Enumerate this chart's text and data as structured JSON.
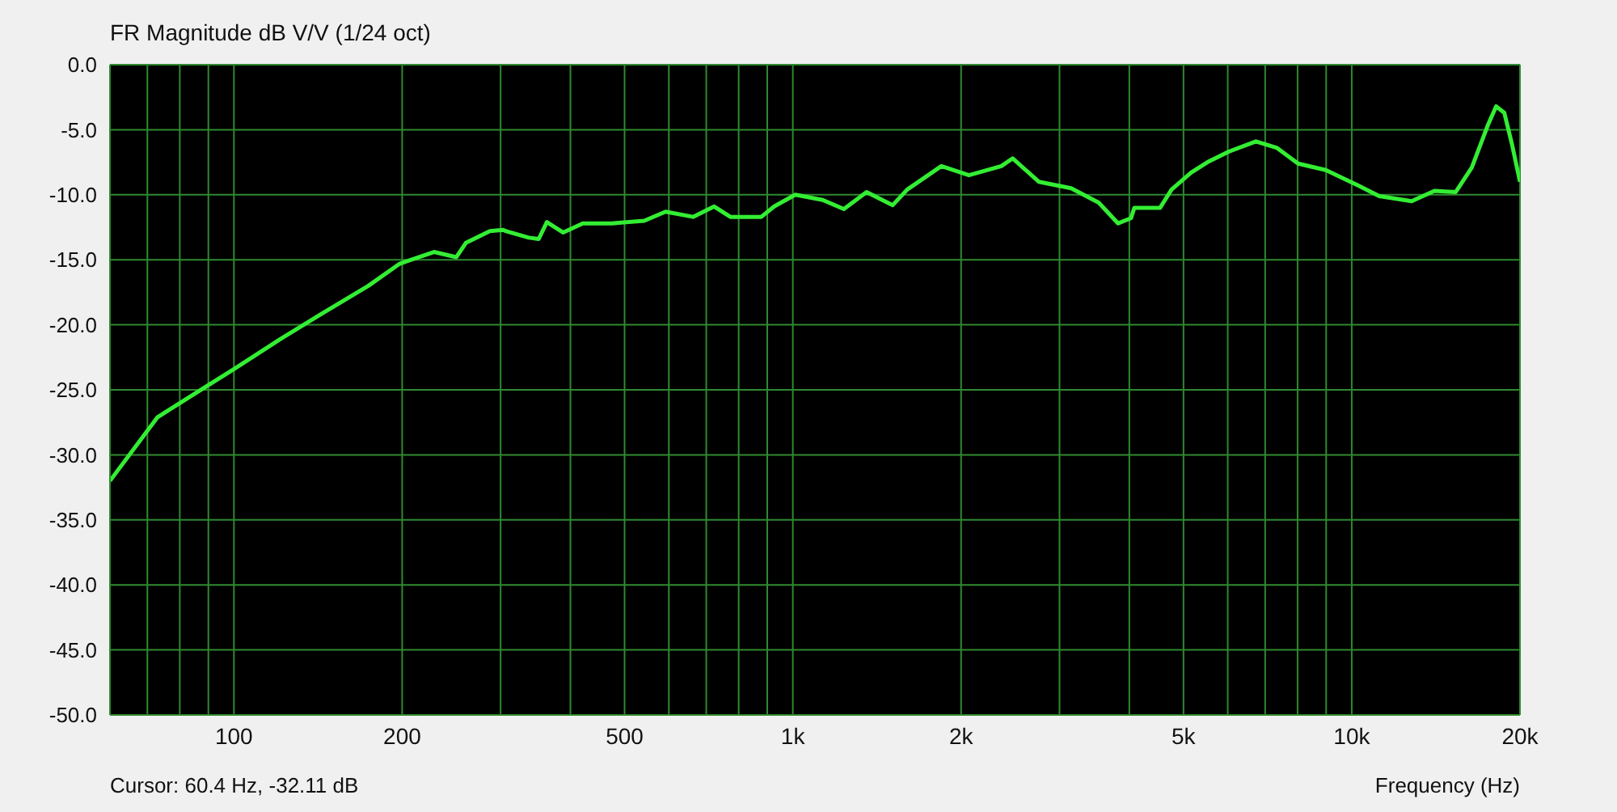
{
  "chart_data": {
    "type": "line",
    "title": "FR Magnitude dB V/V (1/24 oct)",
    "xlabel": "Frequency (Hz)",
    "annotations": [
      "Cursor: 60.4 Hz, -32.11 dB"
    ],
    "x": [
      60,
      73,
      100,
      121,
      143,
      174,
      198,
      228,
      250,
      260,
      287,
      303,
      307,
      337,
      351,
      363,
      388,
      421,
      475,
      542,
      592,
      663,
      723,
      773,
      878,
      926,
      1010,
      1131,
      1234,
      1355,
      1509,
      1602,
      1844,
      2066,
      2361,
      2474,
      2754,
      3147,
      3525,
      3819,
      4028,
      4083,
      4541,
      4760,
      5160,
      5518,
      6014,
      6739,
      7352,
      8017,
      8986,
      10280,
      11200,
      12800,
      14060,
      15340,
      16400,
      17540,
      18130,
      18750,
      19370,
      20000
    ],
    "series": [
      {
        "color": "#33ee33",
        "values": [
          -32.0,
          -27.1,
          -23.4,
          -21.1,
          -19.2,
          -17.0,
          -15.3,
          -14.4,
          -14.8,
          -13.7,
          -12.8,
          -12.7,
          -12.8,
          -13.3,
          -13.4,
          -12.1,
          -12.9,
          -12.2,
          -12.2,
          -12.0,
          -11.3,
          -11.7,
          -10.9,
          -11.7,
          -11.7,
          -10.9,
          -10.0,
          -10.4,
          -11.1,
          -9.8,
          -10.8,
          -9.6,
          -7.8,
          -8.5,
          -7.8,
          -7.2,
          -9.0,
          -9.5,
          -10.6,
          -12.2,
          -11.8,
          -11.0,
          -11.0,
          -9.6,
          -8.3,
          -7.5,
          -6.7,
          -5.9,
          -6.4,
          -7.6,
          -8.1,
          -9.3,
          -10.1,
          -10.5,
          -9.7,
          -9.8,
          -7.9,
          -4.6,
          -3.2,
          -3.7,
          -6.2,
          -9.0
        ]
      }
    ],
    "xlim": [
      60,
      20000
    ],
    "xticks": [
      {
        "value": 70,
        "label": null
      },
      {
        "value": 80,
        "label": null
      },
      {
        "value": 90,
        "label": null
      },
      100,
      200,
      {
        "value": 300,
        "label": null
      },
      {
        "value": 400,
        "label": null
      },
      500,
      {
        "value": 600,
        "label": null
      },
      {
        "value": 700,
        "label": null
      },
      {
        "value": 800,
        "label": null
      },
      {
        "value": 900,
        "label": null
      },
      {
        "value": 1000,
        "label": "1k"
      },
      {
        "value": 2000,
        "label": "2k"
      },
      {
        "value": 3000,
        "label": null
      },
      {
        "value": 4000,
        "label": null
      },
      {
        "value": 5000,
        "label": "5k"
      },
      {
        "value": 6000,
        "label": null
      },
      {
        "value": 7000,
        "label": null
      },
      {
        "value": 8000,
        "label": null
      },
      {
        "value": 9000,
        "label": null
      },
      {
        "value": 10000,
        "label": "10k"
      },
      {
        "value": 20000,
        "label": "20k"
      }
    ],
    "ylim": [
      -50,
      0
    ],
    "yticks": [
      {
        "value": -50,
        "label": "-50.0"
      },
      {
        "value": -45,
        "label": "-45.0"
      },
      {
        "value": -40,
        "label": "-40.0"
      },
      {
        "value": -35,
        "label": "-35.0"
      },
      {
        "value": -30,
        "label": "-30.0"
      },
      {
        "value": -25,
        "label": "-25.0"
      },
      {
        "value": -20,
        "label": "-20.0"
      },
      {
        "value": -15,
        "label": "-15.0"
      },
      {
        "value": -10,
        "label": "-10.0"
      },
      {
        "value": -5,
        "label": "-5.0"
      },
      {
        "value": 0,
        "label": "0.0"
      }
    ],
    "log": "x",
    "grid": true,
    "legend": false,
    "marker": "none",
    "line_style": "solid"
  }
}
